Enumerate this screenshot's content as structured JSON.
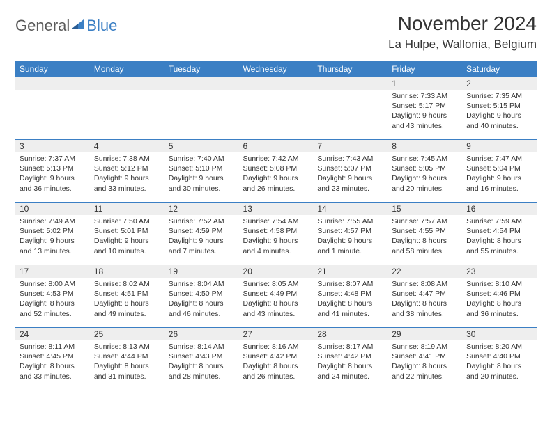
{
  "logo": {
    "text1": "General",
    "text2": "Blue"
  },
  "title": "November 2024",
  "location": "La Hulpe, Wallonia, Belgium",
  "dayHeaders": [
    "Sunday",
    "Monday",
    "Tuesday",
    "Wednesday",
    "Thursday",
    "Friday",
    "Saturday"
  ],
  "colors": {
    "headerBlue": "#3b7fc4",
    "grayBar": "#eeeeee",
    "text": "#333333",
    "logoGray": "#5a5a5a"
  },
  "weeks": [
    [
      {
        "empty": true
      },
      {
        "empty": true
      },
      {
        "empty": true
      },
      {
        "empty": true
      },
      {
        "empty": true
      },
      {
        "day": "1",
        "sunrise": "Sunrise: 7:33 AM",
        "sunset": "Sunset: 5:17 PM",
        "daylight": "Daylight: 9 hours and 43 minutes."
      },
      {
        "day": "2",
        "sunrise": "Sunrise: 7:35 AM",
        "sunset": "Sunset: 5:15 PM",
        "daylight": "Daylight: 9 hours and 40 minutes."
      }
    ],
    [
      {
        "day": "3",
        "sunrise": "Sunrise: 7:37 AM",
        "sunset": "Sunset: 5:13 PM",
        "daylight": "Daylight: 9 hours and 36 minutes."
      },
      {
        "day": "4",
        "sunrise": "Sunrise: 7:38 AM",
        "sunset": "Sunset: 5:12 PM",
        "daylight": "Daylight: 9 hours and 33 minutes."
      },
      {
        "day": "5",
        "sunrise": "Sunrise: 7:40 AM",
        "sunset": "Sunset: 5:10 PM",
        "daylight": "Daylight: 9 hours and 30 minutes."
      },
      {
        "day": "6",
        "sunrise": "Sunrise: 7:42 AM",
        "sunset": "Sunset: 5:08 PM",
        "daylight": "Daylight: 9 hours and 26 minutes."
      },
      {
        "day": "7",
        "sunrise": "Sunrise: 7:43 AM",
        "sunset": "Sunset: 5:07 PM",
        "daylight": "Daylight: 9 hours and 23 minutes."
      },
      {
        "day": "8",
        "sunrise": "Sunrise: 7:45 AM",
        "sunset": "Sunset: 5:05 PM",
        "daylight": "Daylight: 9 hours and 20 minutes."
      },
      {
        "day": "9",
        "sunrise": "Sunrise: 7:47 AM",
        "sunset": "Sunset: 5:04 PM",
        "daylight": "Daylight: 9 hours and 16 minutes."
      }
    ],
    [
      {
        "day": "10",
        "sunrise": "Sunrise: 7:49 AM",
        "sunset": "Sunset: 5:02 PM",
        "daylight": "Daylight: 9 hours and 13 minutes."
      },
      {
        "day": "11",
        "sunrise": "Sunrise: 7:50 AM",
        "sunset": "Sunset: 5:01 PM",
        "daylight": "Daylight: 9 hours and 10 minutes."
      },
      {
        "day": "12",
        "sunrise": "Sunrise: 7:52 AM",
        "sunset": "Sunset: 4:59 PM",
        "daylight": "Daylight: 9 hours and 7 minutes."
      },
      {
        "day": "13",
        "sunrise": "Sunrise: 7:54 AM",
        "sunset": "Sunset: 4:58 PM",
        "daylight": "Daylight: 9 hours and 4 minutes."
      },
      {
        "day": "14",
        "sunrise": "Sunrise: 7:55 AM",
        "sunset": "Sunset: 4:57 PM",
        "daylight": "Daylight: 9 hours and 1 minute."
      },
      {
        "day": "15",
        "sunrise": "Sunrise: 7:57 AM",
        "sunset": "Sunset: 4:55 PM",
        "daylight": "Daylight: 8 hours and 58 minutes."
      },
      {
        "day": "16",
        "sunrise": "Sunrise: 7:59 AM",
        "sunset": "Sunset: 4:54 PM",
        "daylight": "Daylight: 8 hours and 55 minutes."
      }
    ],
    [
      {
        "day": "17",
        "sunrise": "Sunrise: 8:00 AM",
        "sunset": "Sunset: 4:53 PM",
        "daylight": "Daylight: 8 hours and 52 minutes."
      },
      {
        "day": "18",
        "sunrise": "Sunrise: 8:02 AM",
        "sunset": "Sunset: 4:51 PM",
        "daylight": "Daylight: 8 hours and 49 minutes."
      },
      {
        "day": "19",
        "sunrise": "Sunrise: 8:04 AM",
        "sunset": "Sunset: 4:50 PM",
        "daylight": "Daylight: 8 hours and 46 minutes."
      },
      {
        "day": "20",
        "sunrise": "Sunrise: 8:05 AM",
        "sunset": "Sunset: 4:49 PM",
        "daylight": "Daylight: 8 hours and 43 minutes."
      },
      {
        "day": "21",
        "sunrise": "Sunrise: 8:07 AM",
        "sunset": "Sunset: 4:48 PM",
        "daylight": "Daylight: 8 hours and 41 minutes."
      },
      {
        "day": "22",
        "sunrise": "Sunrise: 8:08 AM",
        "sunset": "Sunset: 4:47 PM",
        "daylight": "Daylight: 8 hours and 38 minutes."
      },
      {
        "day": "23",
        "sunrise": "Sunrise: 8:10 AM",
        "sunset": "Sunset: 4:46 PM",
        "daylight": "Daylight: 8 hours and 36 minutes."
      }
    ],
    [
      {
        "day": "24",
        "sunrise": "Sunrise: 8:11 AM",
        "sunset": "Sunset: 4:45 PM",
        "daylight": "Daylight: 8 hours and 33 minutes."
      },
      {
        "day": "25",
        "sunrise": "Sunrise: 8:13 AM",
        "sunset": "Sunset: 4:44 PM",
        "daylight": "Daylight: 8 hours and 31 minutes."
      },
      {
        "day": "26",
        "sunrise": "Sunrise: 8:14 AM",
        "sunset": "Sunset: 4:43 PM",
        "daylight": "Daylight: 8 hours and 28 minutes."
      },
      {
        "day": "27",
        "sunrise": "Sunrise: 8:16 AM",
        "sunset": "Sunset: 4:42 PM",
        "daylight": "Daylight: 8 hours and 26 minutes."
      },
      {
        "day": "28",
        "sunrise": "Sunrise: 8:17 AM",
        "sunset": "Sunset: 4:42 PM",
        "daylight": "Daylight: 8 hours and 24 minutes."
      },
      {
        "day": "29",
        "sunrise": "Sunrise: 8:19 AM",
        "sunset": "Sunset: 4:41 PM",
        "daylight": "Daylight: 8 hours and 22 minutes."
      },
      {
        "day": "30",
        "sunrise": "Sunrise: 8:20 AM",
        "sunset": "Sunset: 4:40 PM",
        "daylight": "Daylight: 8 hours and 20 minutes."
      }
    ]
  ]
}
